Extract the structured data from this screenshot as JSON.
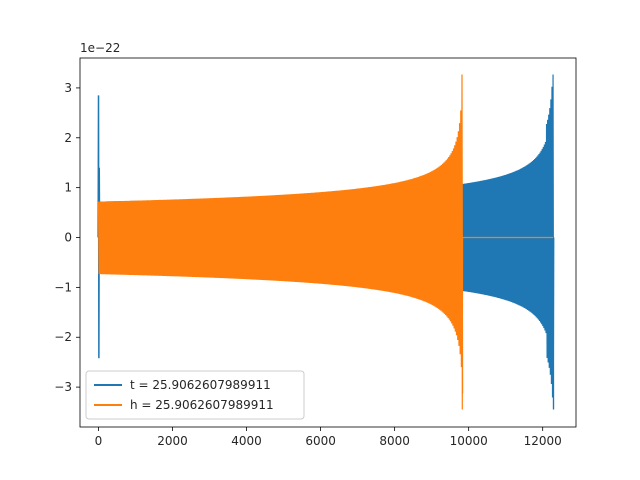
{
  "chart_data": {
    "type": "line",
    "title": "",
    "xlabel": "",
    "ylabel": "",
    "offset_text": "1e−22",
    "xlim": [
      -500,
      12900
    ],
    "ylim": [
      -3.8,
      3.6
    ],
    "x_ticks": [
      0,
      2000,
      4000,
      6000,
      8000,
      10000,
      12000
    ],
    "x_tick_labels": [
      "0",
      "2000",
      "4000",
      "6000",
      "8000",
      "10000",
      "12000"
    ],
    "y_ticks": [
      -3,
      -2,
      -1,
      0,
      1,
      2,
      3
    ],
    "y_tick_labels": [
      "−3",
      "−2",
      "−1",
      "0",
      "1",
      "2",
      "3"
    ],
    "grid": false,
    "legend_position": "lower-left",
    "series": [
      {
        "name": "t = 25.9062607989911",
        "color": "#1f77b4",
        "x_start": 0,
        "x_end": 12280,
        "initial_spike": [
          -2.42,
          2.85
        ],
        "initial_amplitude": 0.72,
        "peak_amplitude": [
          -3.45,
          3.27
        ],
        "peak_x": 12280,
        "cycles": 420
      },
      {
        "name": "h = 25.9062607989911",
        "color": "#ff7f0e",
        "x_start": 0,
        "x_end": 12280,
        "merger_x": 9820,
        "initial_amplitude": 0.72,
        "peak_amplitude": [
          -3.45,
          3.27
        ],
        "post_merger_value": 0,
        "cycles": 300
      }
    ]
  }
}
